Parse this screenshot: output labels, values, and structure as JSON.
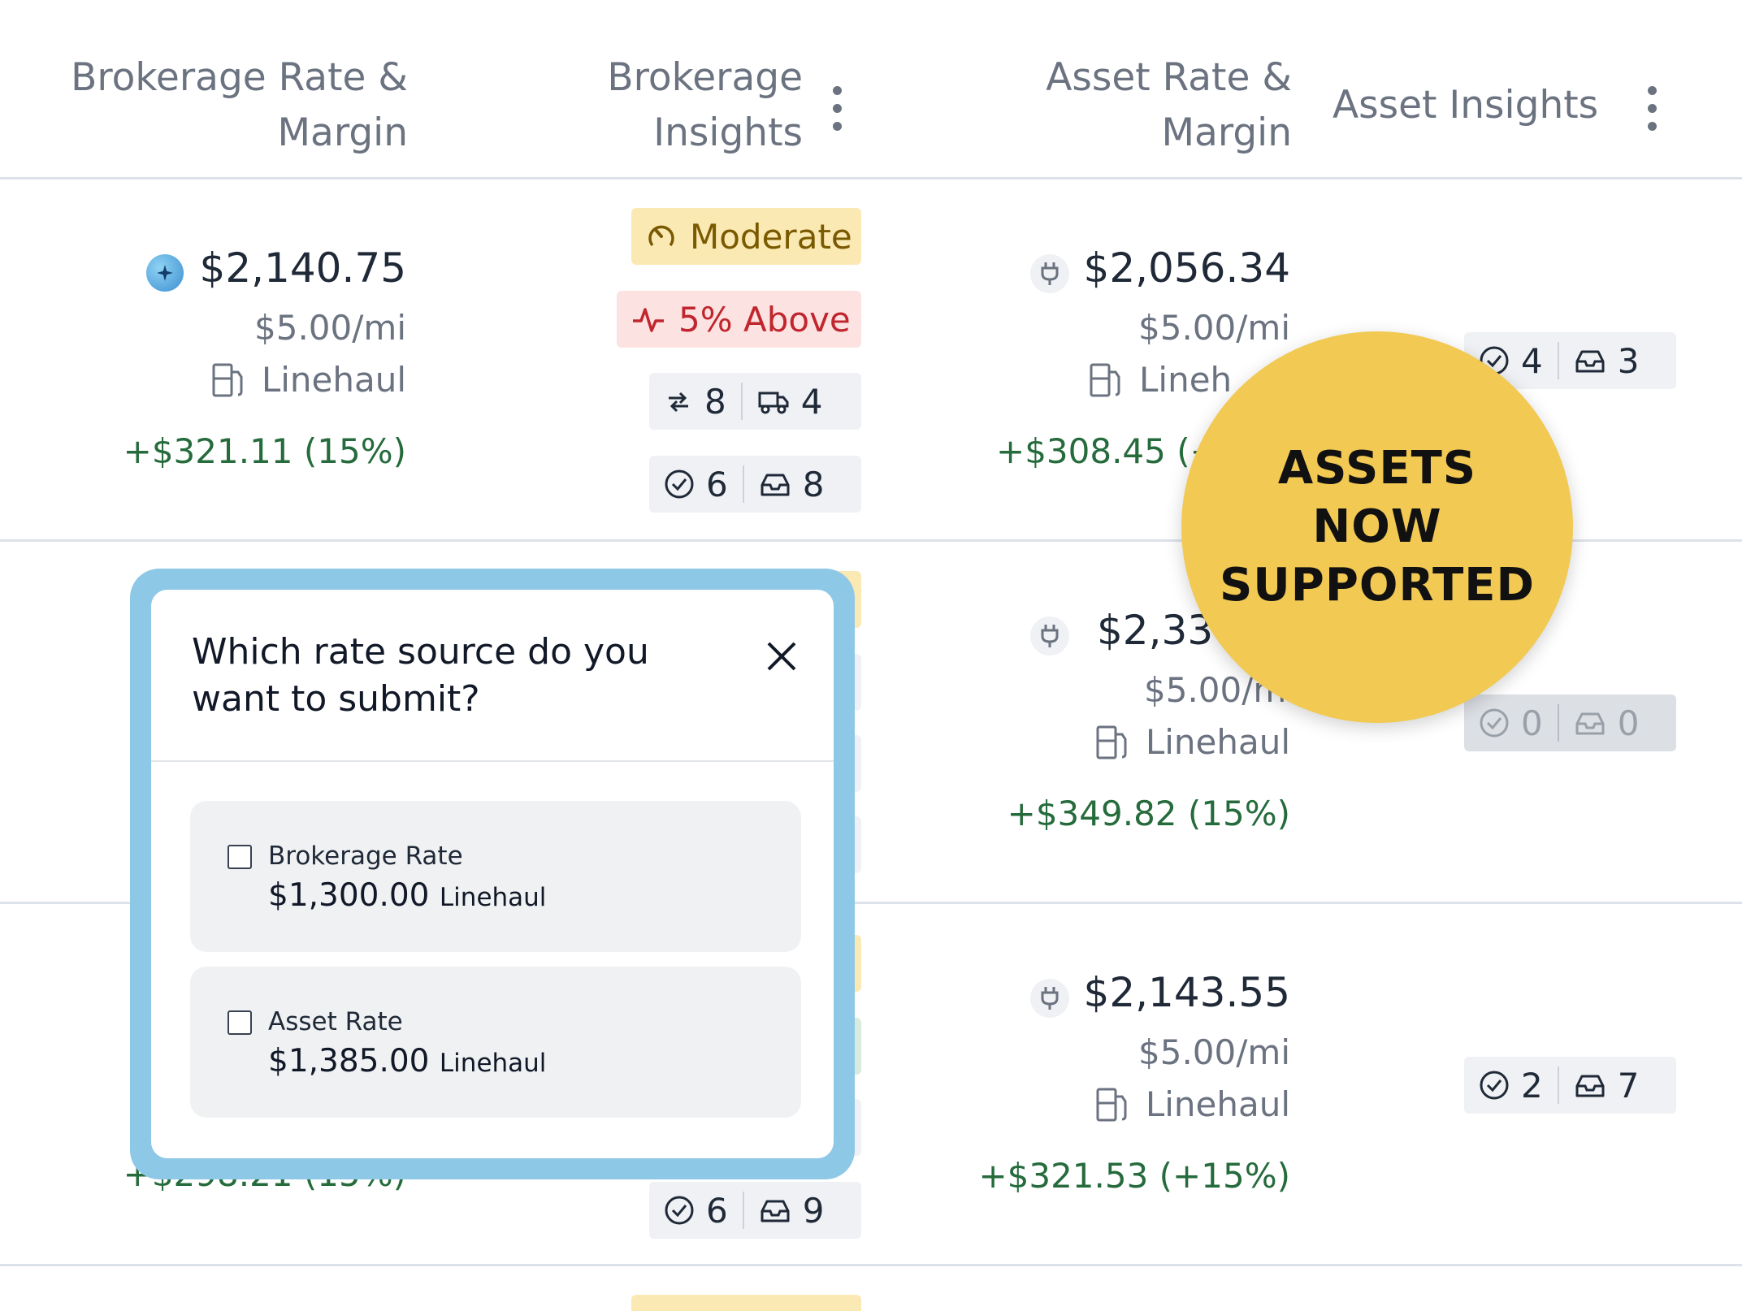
{
  "columns": {
    "brokerage_rate": [
      "Brokerage Rate &",
      "Margin"
    ],
    "brokerage_insights": [
      "Brokerage",
      "Insights"
    ],
    "asset_rate": [
      "Asset Rate &",
      "Margin"
    ],
    "asset_insights": "Asset Insights"
  },
  "rows": [
    {
      "brokerage": {
        "amount": "$2,140.75",
        "per_mile": "$5.00/mi",
        "type": "Linehaul",
        "margin": "+$321.11 (15%)"
      },
      "insights": {
        "confidence": "Moderate",
        "market": "5% Above",
        "lanes": "8",
        "trucks": "4",
        "accepted": "6",
        "loads": "8"
      },
      "asset": {
        "amount": "$2,056.34",
        "per_mile": "$5.00/mi",
        "type": "Lineh",
        "margin": "+$308.45 (+"
      },
      "asset_insights": {
        "accepted": "4",
        "loads": "3"
      }
    },
    {
      "asset": {
        "amount": "$2,33",
        "per_mile": "$5.00/m",
        "type": "Linehaul",
        "margin": "+$349.82 (15%)"
      },
      "asset_insights": {
        "accepted": "0",
        "loads": "0"
      }
    },
    {
      "brokerage": {
        "margin": "+$298.21 (15%)"
      },
      "insights": {
        "accepted": "6",
        "loads": "9"
      },
      "asset": {
        "amount": "$2,143.55",
        "per_mile": "$5.00/mi",
        "type": "Linehaul",
        "margin": "+$321.53 (+15%)"
      },
      "asset_insights": {
        "accepted": "2",
        "loads": "7"
      }
    }
  ],
  "modal": {
    "title": "Which rate source do you want to submit?",
    "options": [
      {
        "label": "Brokerage Rate",
        "amount": "$1,300.00",
        "type": "Linehaul"
      },
      {
        "label": "Asset Rate",
        "amount": "$1,385.00",
        "type": "Linehaul"
      }
    ]
  },
  "badge": {
    "lines": [
      "ASSETS",
      "NOW",
      "SUPPORTED"
    ]
  },
  "colors": {
    "accent_blue": "#8ec8e7",
    "badge_yellow": "#f1c953",
    "margin_green": "#256b3c",
    "above_red": "#c0262d"
  }
}
